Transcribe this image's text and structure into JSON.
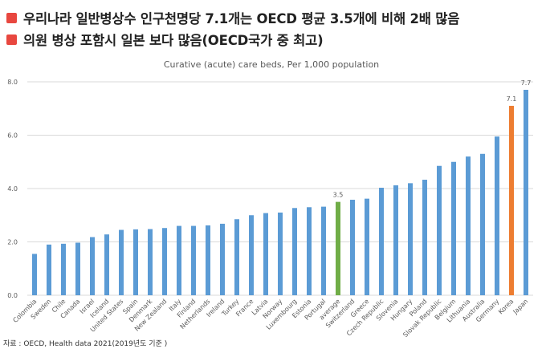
{
  "headline": {
    "line1": "우리나라 일반병상수 인구천명당 7.1개는 OECD 평균 3.5개에 비해 2배 많음",
    "line2": "의원 병상 포함시 일본 보다 많음(OECD국가 중 최고)"
  },
  "source": "자료 : OECD, Health data 2021(2019년도 기준 )",
  "colors": {
    "default_bar": "#5b9bd5",
    "average_bar": "#70ad47",
    "korea_bar": "#ed7d31",
    "bullet": "#e8473f",
    "gridline": "#d9d9d9",
    "text": "#595959"
  },
  "chart_data": {
    "type": "bar",
    "title": "Curative (acute) care beds, Per 1,000 population",
    "xlabel": "",
    "ylabel": "",
    "ylim": [
      0,
      8
    ],
    "yticks": [
      "0.0",
      "2.0",
      "4.0",
      "6.0",
      "8.0"
    ],
    "ytick_values": [
      0,
      2,
      4,
      6,
      8
    ],
    "grid": true,
    "categories": [
      "Colombia",
      "Sweden",
      "Chile",
      "Canada",
      "Israel",
      "Iceland",
      "United States",
      "Spain",
      "Denmark",
      "New Zealand",
      "Italy",
      "Finland",
      "Netherlands",
      "Ireland",
      "Turkey",
      "France",
      "Latvia",
      "Norway",
      "Luxembourg",
      "Estonia",
      "Portugal",
      "average",
      "Switzerland",
      "Greece",
      "Czech Republic",
      "Slovenia",
      "Hungary",
      "Poland",
      "Slovak Republic",
      "Belgium",
      "Lithuania",
      "Australia",
      "Germany",
      "Korea",
      "Japan"
    ],
    "values": [
      1.55,
      1.9,
      1.93,
      1.97,
      2.18,
      2.28,
      2.45,
      2.47,
      2.48,
      2.52,
      2.6,
      2.6,
      2.62,
      2.68,
      2.85,
      3.0,
      3.08,
      3.1,
      3.27,
      3.3,
      3.32,
      3.5,
      3.58,
      3.62,
      4.03,
      4.12,
      4.2,
      4.33,
      4.85,
      5.0,
      5.2,
      5.3,
      5.95,
      7.1,
      7.7
    ],
    "highlight": {
      "average": "average_bar",
      "Korea": "korea_bar"
    },
    "data_labels": [
      {
        "category": "average",
        "text": "3.5"
      },
      {
        "category": "Korea",
        "text": "7.1"
      },
      {
        "category": "Japan",
        "text": "7.7"
      }
    ]
  }
}
